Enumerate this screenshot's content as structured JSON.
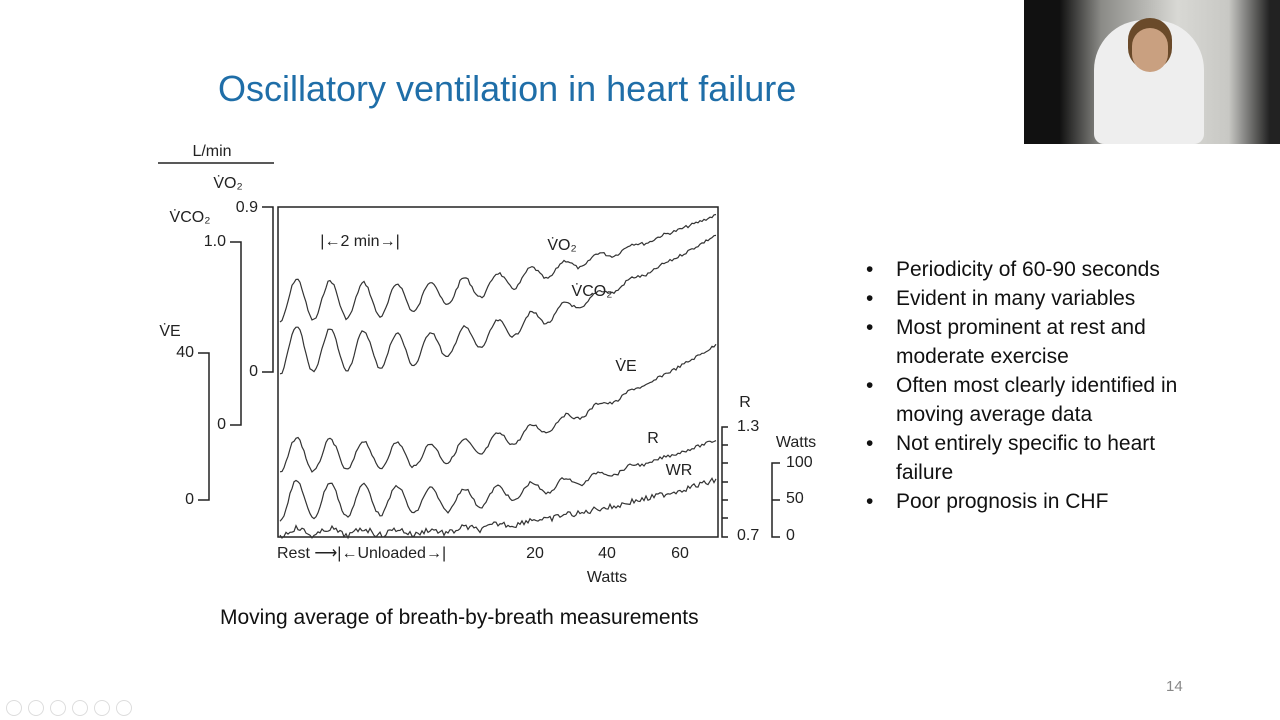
{
  "slide": {
    "title": "Oscillatory ventilation in heart failure",
    "figure": {
      "labels": [
        "L/min",
        "V̇O₂",
        "V̇CO₂",
        "0.9",
        "1.0",
        "V̇E",
        "40",
        "0",
        "0",
        "0",
        "|←2 min→|",
        "V̇O₂",
        "V̇CO₂",
        "V̇E",
        "R",
        "WR",
        "R",
        "1.3",
        "Watts",
        "100",
        "50",
        "0",
        "0.7",
        "Rest ⟶|←Unloaded→|",
        "20",
        "40",
        "60",
        "Watts"
      ]
    },
    "caption": "Moving average of breath-by-breath measurements",
    "bullets": [
      "Periodicity of 60-90 seconds",
      "Evident in many variables",
      "Most prominent at rest and moderate exercise",
      "Often most clearly identified in moving average data",
      "Not entirely specific to heart failure",
      "Poor prognosis in CHF"
    ],
    "page_number": "14"
  }
}
